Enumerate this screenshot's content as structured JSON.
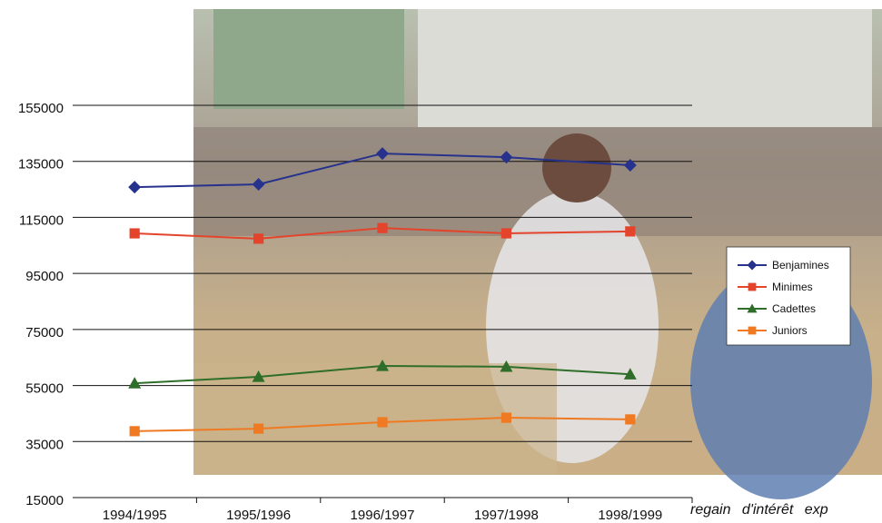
{
  "chart_data": {
    "type": "line",
    "categories": [
      "1994/1995",
      "1995/1996",
      "1996/1997",
      "1997/1998",
      "1998/1999"
    ],
    "series": [
      {
        "name": "Benjamines",
        "color": "#27328c",
        "marker": "diamond",
        "values": [
          125800,
          126800,
          137800,
          136500,
          133600
        ]
      },
      {
        "name": "Minimes",
        "color": "#e3442b",
        "marker": "square",
        "values": [
          109300,
          107400,
          111200,
          109300,
          110000
        ]
      },
      {
        "name": "Cadettes",
        "color": "#2f6e2a",
        "marker": "triangle",
        "values": [
          55800,
          58100,
          62000,
          61700,
          59000
        ]
      },
      {
        "name": "Juniors",
        "color": "#f07a22",
        "marker": "square",
        "values": [
          38700,
          39600,
          41900,
          43500,
          42900
        ]
      }
    ],
    "ylim": [
      15000,
      155000
    ],
    "yticks": [
      15000,
      35000,
      55000,
      75000,
      95000,
      115000,
      135000,
      155000
    ],
    "grid": true,
    "legend": "right"
  },
  "footer_text": "regain d'intérêt exp"
}
